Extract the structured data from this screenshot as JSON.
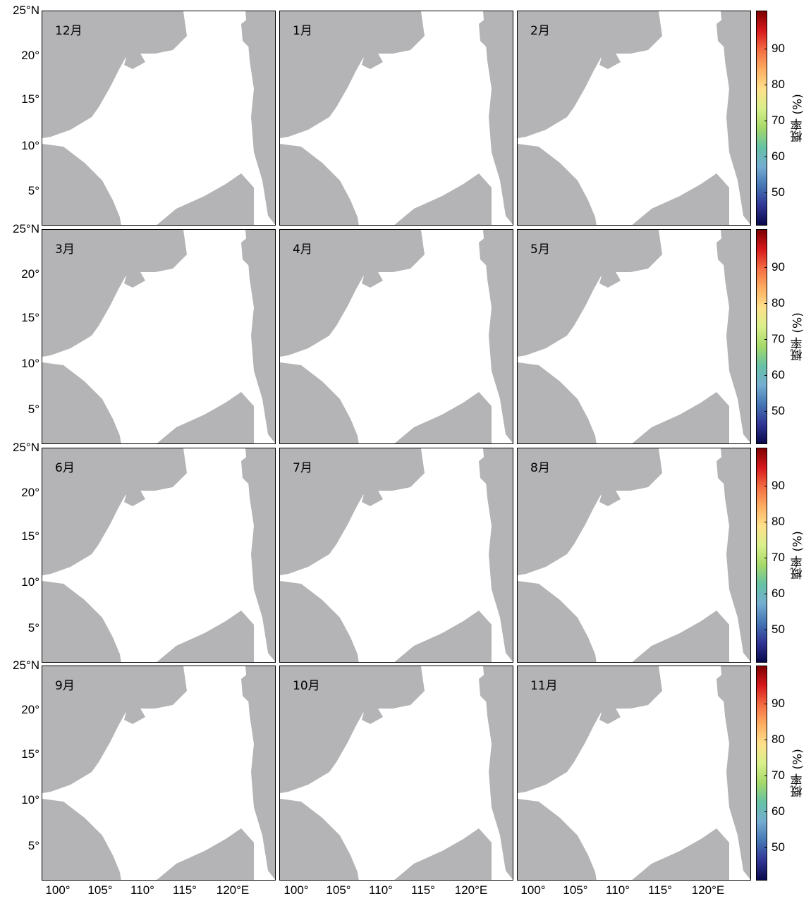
{
  "figure": {
    "y_tick_labels": [
      "25°N",
      "20°",
      "15°",
      "10°",
      "5°"
    ],
    "x_tick_labels": [
      "100°",
      "105°",
      "110°",
      "115°",
      "120°E"
    ],
    "colorbar": {
      "label": "概率 (%)",
      "ticks": [
        "90",
        "80",
        "70",
        "60",
        "50"
      ],
      "range": [
        41,
        100
      ],
      "colors": [
        "#7f0000",
        "#d7191c",
        "#f46d43",
        "#fdae61",
        "#fee08b",
        "#d9ef8b",
        "#a6d96a",
        "#66c2a5",
        "#74add1",
        "#4575b4",
        "#313695",
        "#08084a"
      ]
    },
    "land_color": "#b4b4b6",
    "panels": [
      {
        "month": "12月"
      },
      {
        "month": "1月"
      },
      {
        "month": "2月"
      },
      {
        "month": "3月"
      },
      {
        "month": "4月"
      },
      {
        "month": "5月"
      },
      {
        "month": "6月"
      },
      {
        "month": "7月"
      },
      {
        "month": "8月"
      },
      {
        "month": "9月"
      },
      {
        "month": "10月"
      },
      {
        "month": "11月"
      }
    ]
  }
}
